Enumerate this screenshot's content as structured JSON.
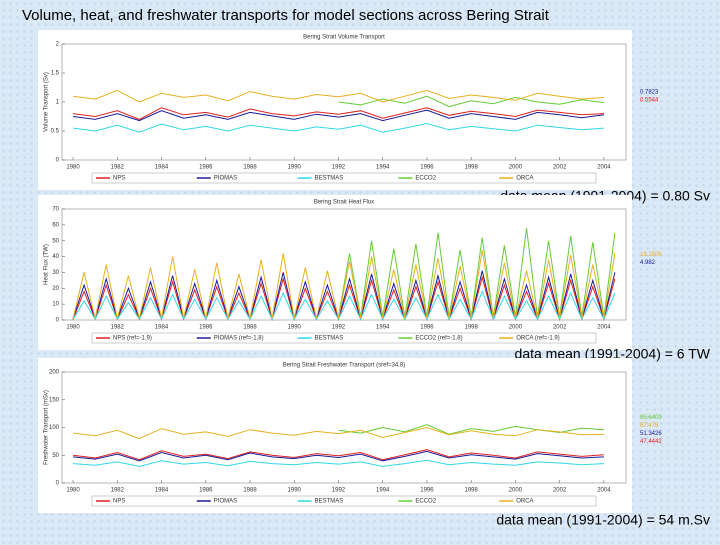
{
  "title": "Volume, heat, and freshwater transports for model sections across Bering Strait",
  "chart_data": [
    {
      "type": "line",
      "title": "Bering Strait Volume Transport",
      "y_label": "Volume Transport (Sv)",
      "caption": "data mean (1991-2004) = 0.80 Sv",
      "x": [
        1980,
        1981,
        1982,
        1983,
        1984,
        1985,
        1986,
        1987,
        1988,
        1989,
        1990,
        1991,
        1992,
        1993,
        1994,
        1995,
        1996,
        1997,
        1998,
        1999,
        2000,
        2001,
        2002,
        2003,
        2004
      ],
      "xlim": [
        1979.5,
        2005
      ],
      "xticks": [
        1980,
        1982,
        1984,
        1986,
        1988,
        1990,
        1992,
        1994,
        1996,
        1998,
        2000,
        2002,
        2004
      ],
      "ylim": [
        0,
        2
      ],
      "yticks": [
        0,
        0.5,
        1,
        1.5,
        2
      ],
      "series": [
        {
          "name": "NPS",
          "color": "#e02020",
          "values": [
            0.8,
            0.75,
            0.85,
            0.7,
            0.9,
            0.78,
            0.82,
            0.74,
            0.88,
            0.8,
            0.76,
            0.83,
            0.79,
            0.85,
            0.72,
            0.81,
            0.9,
            0.77,
            0.84,
            0.8,
            0.75,
            0.86,
            0.82,
            0.78,
            0.8
          ]
        },
        {
          "name": "PIOMAS",
          "color": "#1a1a9a",
          "values": [
            0.75,
            0.7,
            0.8,
            0.68,
            0.85,
            0.72,
            0.78,
            0.7,
            0.82,
            0.76,
            0.7,
            0.79,
            0.74,
            0.8,
            0.68,
            0.77,
            0.86,
            0.72,
            0.8,
            0.75,
            0.7,
            0.82,
            0.78,
            0.73,
            0.78
          ]
        },
        {
          "name": "BESTMAS",
          "color": "#30d8e8",
          "values": [
            0.55,
            0.5,
            0.6,
            0.48,
            0.62,
            0.52,
            0.58,
            0.5,
            0.6,
            0.55,
            0.5,
            0.57,
            0.53,
            0.6,
            0.48,
            0.55,
            0.63,
            0.52,
            0.58,
            0.54,
            0.5,
            0.6,
            0.56,
            0.52,
            0.55
          ]
        },
        {
          "name": "ECCO2",
          "color": "#66cc33",
          "values": [
            null,
            null,
            null,
            null,
            null,
            null,
            null,
            null,
            null,
            null,
            null,
            null,
            1.0,
            0.95,
            1.05,
            0.98,
            1.1,
            0.92,
            1.02,
            0.97,
            1.08,
            1.0,
            0.96,
            1.04,
            0.99
          ]
        },
        {
          "name": "ORCA",
          "color": "#e8b020",
          "values": [
            1.1,
            1.05,
            1.2,
            1.0,
            1.15,
            1.08,
            1.12,
            1.02,
            1.18,
            1.1,
            1.05,
            1.13,
            1.09,
            1.15,
            1.0,
            1.1,
            1.2,
            1.06,
            1.12,
            1.08,
            1.03,
            1.15,
            1.1,
            1.05,
            1.08
          ]
        }
      ],
      "annotations": [
        {
          "text": "0.7823",
          "color": "#1a1a9a"
        },
        {
          "text": "0.5544",
          "color": "#e02020"
        }
      ]
    },
    {
      "type": "line",
      "title": "Bering Strait Heat Flux",
      "y_label": "Heat Flux (TW)",
      "caption": "data mean (1991-2004) = 6 TW",
      "x": [
        1980,
        1980.5,
        1981,
        1981.5,
        1982,
        1982.5,
        1983,
        1983.5,
        1984,
        1984.5,
        1985,
        1985.5,
        1986,
        1986.5,
        1987,
        1987.5,
        1988,
        1988.5,
        1989,
        1989.5,
        1990,
        1990.5,
        1991,
        1991.5,
        1992,
        1992.5,
        1993,
        1993.5,
        1994,
        1994.5,
        1995,
        1995.5,
        1996,
        1996.5,
        1997,
        1997.5,
        1998,
        1998.5,
        1999,
        1999.5,
        2000,
        2000.5,
        2001,
        2001.5,
        2002,
        2002.5,
        2003,
        2003.5,
        2004,
        2004.5
      ],
      "xlim": [
        1979.5,
        2005
      ],
      "xticks": [
        1980,
        1982,
        1984,
        1986,
        1988,
        1990,
        1992,
        1994,
        1996,
        1998,
        2000,
        2002,
        2004
      ],
      "ylim": [
        0,
        70
      ],
      "yticks": [
        0,
        10,
        20,
        30,
        40,
        50,
        60,
        70
      ],
      "series": [
        {
          "name": "NPS (ref=-1.9)",
          "color": "#e02020",
          "values": [
            0.5,
            18,
            0.5,
            22,
            0.5,
            16,
            0.5,
            20,
            0.5,
            24,
            0.5,
            19,
            0.5,
            21,
            0.5,
            17,
            0.5,
            23,
            0.5,
            26,
            0.5,
            20,
            0.5,
            18,
            0.5,
            22,
            0.5,
            25,
            0.5,
            19,
            0.5,
            21,
            0.5,
            24,
            0.5,
            20,
            0.5,
            27,
            0.5,
            22,
            0.5,
            18,
            0.5,
            23,
            0.5,
            25,
            0.5,
            21,
            0.5,
            26
          ]
        },
        {
          "name": "PIOMAS (ref=-1.8)",
          "color": "#1a1a9a",
          "values": [
            1,
            22,
            1,
            26,
            1,
            20,
            1,
            24,
            1,
            28,
            1,
            23,
            1,
            25,
            1,
            21,
            1,
            27,
            1,
            30,
            1,
            24,
            1,
            22,
            1,
            26,
            1,
            29,
            1,
            23,
            1,
            25,
            1,
            28,
            1,
            24,
            1,
            31,
            1,
            26,
            1,
            22,
            1,
            27,
            1,
            29,
            1,
            25,
            1,
            30
          ]
        },
        {
          "name": "BESTMAS",
          "color": "#30d8e8",
          "values": [
            0.5,
            12,
            0.5,
            15,
            0.5,
            11,
            0.5,
            14,
            0.5,
            16,
            0.5,
            13,
            0.5,
            14,
            0.5,
            12,
            0.5,
            15,
            0.5,
            17,
            0.5,
            13,
            0.5,
            12,
            0.5,
            15,
            0.5,
            16,
            0.5,
            13,
            0.5,
            14,
            0.5,
            16,
            0.5,
            13,
            0.5,
            18,
            0.5,
            15,
            0.5,
            12,
            0.5,
            15,
            0.5,
            17,
            0.5,
            14,
            0.5,
            17
          ]
        },
        {
          "name": "ECCO2 (ref=-1.8)",
          "color": "#66cc33",
          "values": [
            null,
            null,
            null,
            null,
            null,
            null,
            null,
            null,
            null,
            null,
            null,
            null,
            null,
            null,
            null,
            null,
            null,
            null,
            null,
            null,
            null,
            null,
            null,
            null,
            2,
            42,
            2,
            50,
            2,
            45,
            2,
            48,
            2,
            55,
            2,
            44,
            2,
            52,
            2,
            47,
            2,
            58,
            2,
            50,
            2,
            53,
            2,
            49,
            2,
            55
          ]
        },
        {
          "name": "ORCA (ref=-1.9)",
          "color": "#e8b020",
          "values": [
            1,
            30,
            1,
            35,
            1,
            28,
            1,
            33,
            1,
            40,
            1,
            32,
            1,
            36,
            1,
            29,
            1,
            38,
            1,
            42,
            1,
            33,
            1,
            31,
            1,
            37,
            1,
            40,
            1,
            32,
            1,
            35,
            1,
            39,
            1,
            34,
            1,
            44,
            1,
            36,
            1,
            31,
            1,
            38,
            1,
            41,
            1,
            35,
            1,
            42
          ]
        }
      ],
      "annotations": [
        {
          "text": "18.1508",
          "color": "#e8b020"
        },
        {
          "text": "4.982",
          "color": "#1a1a9a"
        }
      ]
    },
    {
      "type": "line",
      "title": "Bering Strait Freshwater Transport (sref=34.8)",
      "y_label": "Freshwater Transport (mSv)",
      "caption": "data mean (1991-2004) = 54 m.Sv",
      "x": [
        1980,
        1981,
        1982,
        1983,
        1984,
        1985,
        1986,
        1987,
        1988,
        1989,
        1990,
        1991,
        1992,
        1993,
        1994,
        1995,
        1996,
        1997,
        1998,
        1999,
        2000,
        2001,
        2002,
        2003,
        2004
      ],
      "xlim": [
        1979.5,
        2005
      ],
      "xticks": [
        1980,
        1982,
        1984,
        1986,
        1988,
        1990,
        1992,
        1994,
        1996,
        1998,
        2000,
        2002,
        2004
      ],
      "ylim": [
        0,
        200
      ],
      "yticks": [
        0,
        50,
        100,
        150,
        200
      ],
      "series": [
        {
          "name": "NPS",
          "color": "#e02020",
          "values": [
            50,
            45,
            55,
            42,
            58,
            48,
            52,
            44,
            56,
            50,
            46,
            53,
            49,
            55,
            42,
            51,
            60,
            47,
            54,
            50,
            45,
            56,
            52,
            48,
            51
          ]
        },
        {
          "name": "PIOMAS",
          "color": "#1a1a9a",
          "values": [
            47,
            43,
            52,
            40,
            55,
            45,
            50,
            42,
            54,
            47,
            44,
            50,
            46,
            52,
            40,
            48,
            57,
            45,
            51,
            47,
            43,
            53,
            49,
            45,
            47
          ]
        },
        {
          "name": "BESTMAS",
          "color": "#30d8e8",
          "values": [
            35,
            32,
            38,
            30,
            40,
            34,
            37,
            31,
            39,
            35,
            33,
            37,
            34,
            38,
            30,
            35,
            41,
            33,
            37,
            34,
            32,
            38,
            36,
            33,
            35
          ]
        },
        {
          "name": "ECCO2",
          "color": "#66cc33",
          "values": [
            null,
            null,
            null,
            null,
            null,
            null,
            null,
            null,
            null,
            null,
            null,
            null,
            95,
            90,
            100,
            92,
            105,
            88,
            98,
            93,
            102,
            96,
            91,
            99,
            96
          ]
        },
        {
          "name": "ORCA",
          "color": "#e8b020",
          "values": [
            90,
            85,
            95,
            80,
            98,
            88,
            92,
            84,
            96,
            90,
            86,
            93,
            89,
            95,
            82,
            91,
            100,
            87,
            94,
            88,
            85,
            96,
            92,
            87,
            88
          ]
        }
      ],
      "annotations": [
        {
          "text": "95.6409",
          "color": "#66cc33"
        },
        {
          "text": "87.478",
          "color": "#e8b020"
        },
        {
          "text": "51.3426",
          "color": "#1a1a9a"
        },
        {
          "text": "47.4442",
          "color": "#e02020"
        }
      ]
    }
  ]
}
